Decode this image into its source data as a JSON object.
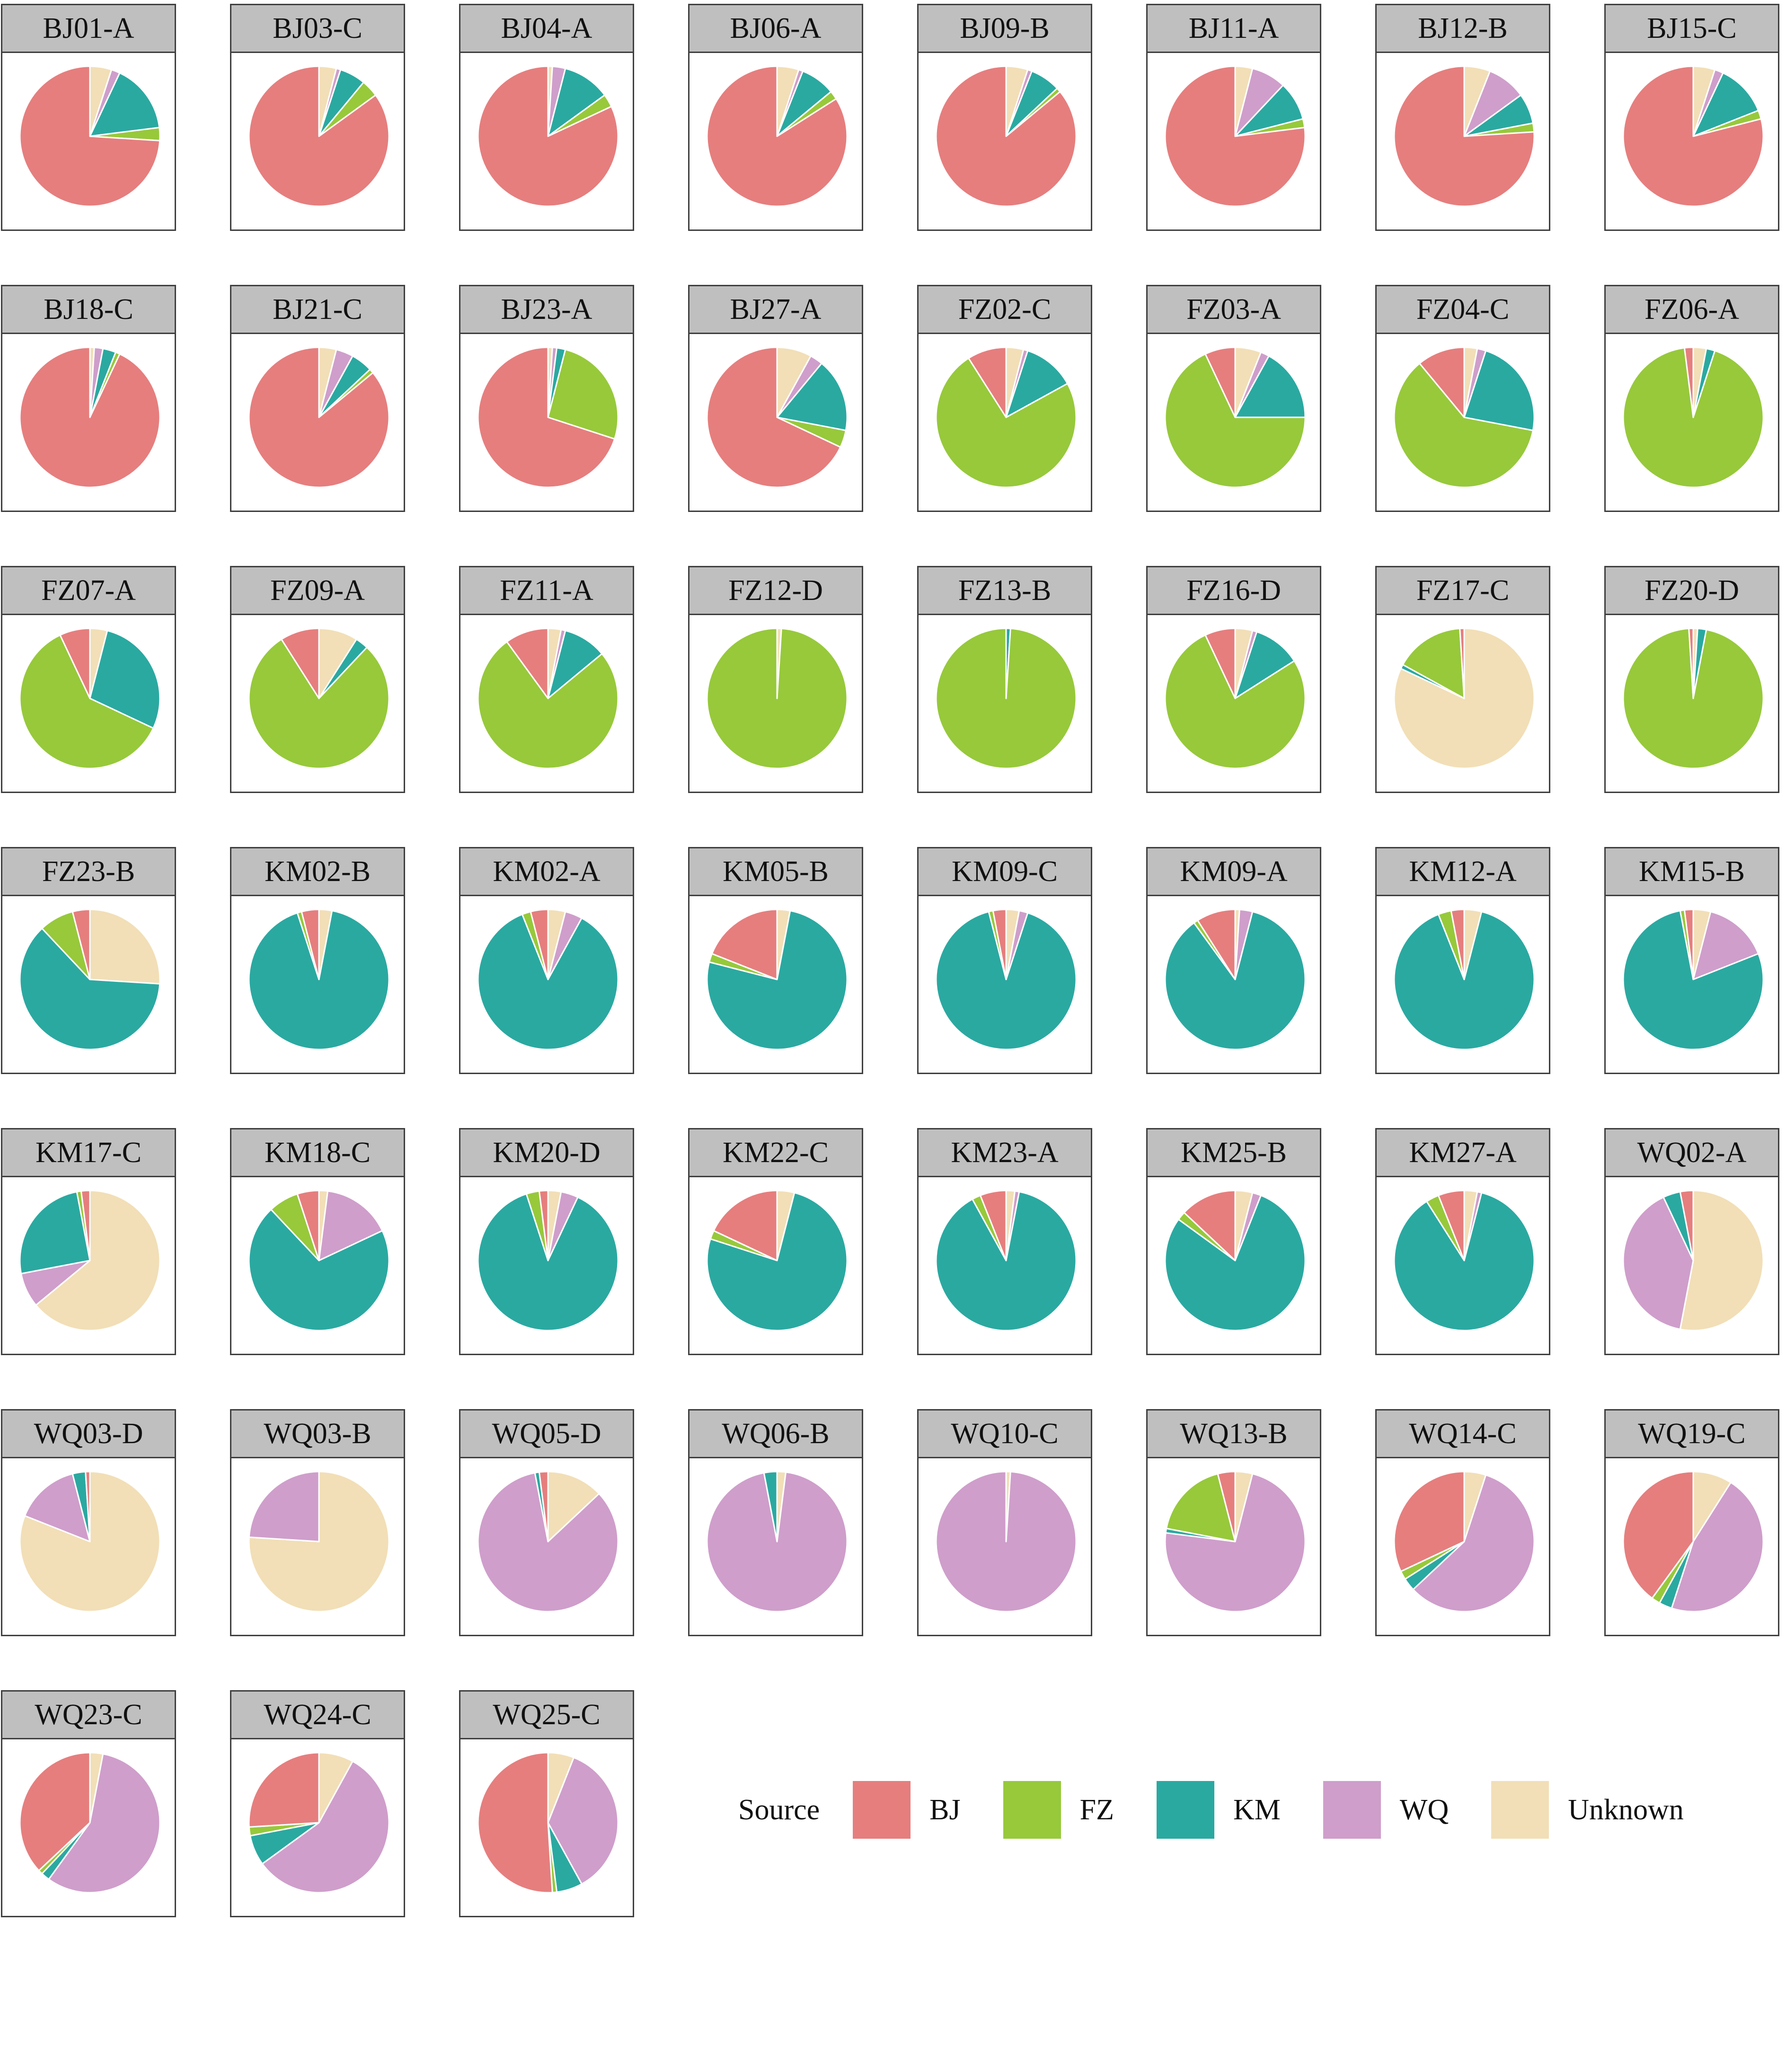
{
  "chart_data": {
    "type": "pie",
    "legend": {
      "title": "Source",
      "entries": [
        {
          "name": "BJ",
          "color": "#e67e7e"
        },
        {
          "name": "FZ",
          "color": "#97c93b"
        },
        {
          "name": "KM",
          "color": "#2aa9a1"
        },
        {
          "name": "WQ",
          "color": "#cf9ecb"
        },
        {
          "name": "Unknown",
          "color": "#f2dfb7"
        }
      ]
    },
    "slice_order_clockwise_from_top": [
      "Unknown",
      "WQ",
      "KM",
      "FZ",
      "BJ"
    ],
    "panels": [
      {
        "label": "BJ01-A",
        "values": {
          "Unknown": 5,
          "WQ": 2,
          "KM": 16,
          "FZ": 3,
          "BJ": 74
        }
      },
      {
        "label": "BJ03-C",
        "values": {
          "Unknown": 4,
          "WQ": 1,
          "KM": 6,
          "FZ": 4,
          "BJ": 85
        }
      },
      {
        "label": "BJ04-A",
        "values": {
          "Unknown": 1,
          "WQ": 3,
          "KM": 11,
          "FZ": 3,
          "BJ": 82
        }
      },
      {
        "label": "BJ06-A",
        "values": {
          "Unknown": 5,
          "WQ": 1,
          "KM": 8,
          "FZ": 2,
          "BJ": 84
        }
      },
      {
        "label": "BJ09-B",
        "values": {
          "Unknown": 5,
          "WQ": 1,
          "KM": 7,
          "FZ": 1,
          "BJ": 86
        }
      },
      {
        "label": "BJ11-A",
        "values": {
          "Unknown": 4,
          "WQ": 8,
          "KM": 9,
          "FZ": 2,
          "BJ": 77
        }
      },
      {
        "label": "BJ12-B",
        "values": {
          "Unknown": 6,
          "WQ": 9,
          "KM": 7,
          "FZ": 2,
          "BJ": 76
        }
      },
      {
        "label": "BJ15-C",
        "values": {
          "Unknown": 5,
          "WQ": 2,
          "KM": 12,
          "FZ": 2,
          "BJ": 79
        }
      },
      {
        "label": "BJ18-C",
        "values": {
          "Unknown": 1,
          "WQ": 2,
          "KM": 3,
          "FZ": 1,
          "BJ": 93
        }
      },
      {
        "label": "BJ21-C",
        "values": {
          "Unknown": 4,
          "WQ": 4,
          "KM": 5,
          "FZ": 1,
          "BJ": 86
        }
      },
      {
        "label": "BJ23-A",
        "values": {
          "Unknown": 1,
          "WQ": 1,
          "KM": 2,
          "FZ": 26,
          "BJ": 70
        }
      },
      {
        "label": "BJ27-A",
        "values": {
          "Unknown": 8,
          "WQ": 3,
          "KM": 17,
          "FZ": 4,
          "BJ": 68
        }
      },
      {
        "label": "FZ02-C",
        "values": {
          "Unknown": 4,
          "WQ": 1,
          "KM": 12,
          "FZ": 74,
          "BJ": 9
        }
      },
      {
        "label": "FZ03-A",
        "values": {
          "Unknown": 6,
          "WQ": 2,
          "KM": 17,
          "FZ": 68,
          "BJ": 7
        }
      },
      {
        "label": "FZ04-C",
        "values": {
          "Unknown": 3,
          "WQ": 2,
          "KM": 23,
          "FZ": 61,
          "BJ": 11
        }
      },
      {
        "label": "FZ06-A",
        "values": {
          "Unknown": 3,
          "WQ": 0,
          "KM": 2,
          "FZ": 93,
          "BJ": 2
        }
      },
      {
        "label": "FZ07-A",
        "values": {
          "Unknown": 4,
          "WQ": 0,
          "KM": 28,
          "FZ": 61,
          "BJ": 7
        }
      },
      {
        "label": "FZ09-A",
        "values": {
          "Unknown": 9,
          "WQ": 0,
          "KM": 3,
          "FZ": 79,
          "BJ": 9
        }
      },
      {
        "label": "FZ11-A",
        "values": {
          "Unknown": 3,
          "WQ": 1,
          "KM": 10,
          "FZ": 76,
          "BJ": 10
        }
      },
      {
        "label": "FZ12-D",
        "values": {
          "Unknown": 1,
          "WQ": 0,
          "KM": 0,
          "FZ": 99,
          "BJ": 0
        }
      },
      {
        "label": "FZ13-B",
        "values": {
          "Unknown": 0,
          "WQ": 0,
          "KM": 1,
          "FZ": 99,
          "BJ": 0
        }
      },
      {
        "label": "FZ16-D",
        "values": {
          "Unknown": 4,
          "WQ": 1,
          "KM": 11,
          "FZ": 77,
          "BJ": 7
        }
      },
      {
        "label": "FZ17-C",
        "values": {
          "Unknown": 82,
          "WQ": 0,
          "KM": 1,
          "FZ": 16,
          "BJ": 1
        }
      },
      {
        "label": "FZ20-D",
        "values": {
          "Unknown": 1,
          "WQ": 0,
          "KM": 2,
          "FZ": 96,
          "BJ": 1
        }
      },
      {
        "label": "FZ23-B",
        "values": {
          "Unknown": 26,
          "WQ": 0,
          "KM": 62,
          "FZ": 8,
          "BJ": 4
        }
      },
      {
        "label": "KM02-B",
        "values": {
          "Unknown": 3,
          "WQ": 0,
          "KM": 92,
          "FZ": 1,
          "BJ": 4
        }
      },
      {
        "label": "KM02-A",
        "values": {
          "Unknown": 4,
          "WQ": 4,
          "KM": 86,
          "FZ": 2,
          "BJ": 4
        }
      },
      {
        "label": "KM05-B",
        "values": {
          "Unknown": 3,
          "WQ": 0,
          "KM": 76,
          "FZ": 2,
          "BJ": 19
        }
      },
      {
        "label": "KM09-C",
        "values": {
          "Unknown": 3,
          "WQ": 2,
          "KM": 91,
          "FZ": 1,
          "BJ": 3
        }
      },
      {
        "label": "KM09-A",
        "values": {
          "Unknown": 1,
          "WQ": 3,
          "KM": 86,
          "FZ": 1,
          "BJ": 9
        }
      },
      {
        "label": "KM12-A",
        "values": {
          "Unknown": 4,
          "WQ": 0,
          "KM": 90,
          "FZ": 3,
          "BJ": 3
        }
      },
      {
        "label": "KM15-B",
        "values": {
          "Unknown": 4,
          "WQ": 15,
          "KM": 78,
          "FZ": 1,
          "BJ": 2
        }
      },
      {
        "label": "KM17-C",
        "values": {
          "Unknown": 64,
          "WQ": 8,
          "KM": 25,
          "FZ": 1,
          "BJ": 2
        }
      },
      {
        "label": "KM18-C",
        "values": {
          "Unknown": 2,
          "WQ": 16,
          "KM": 70,
          "FZ": 7,
          "BJ": 5
        }
      },
      {
        "label": "KM20-D",
        "values": {
          "Unknown": 3,
          "WQ": 4,
          "KM": 88,
          "FZ": 3,
          "BJ": 2
        }
      },
      {
        "label": "KM22-C",
        "values": {
          "Unknown": 4,
          "WQ": 0,
          "KM": 76,
          "FZ": 2,
          "BJ": 18
        }
      },
      {
        "label": "KM23-A",
        "values": {
          "Unknown": 2,
          "WQ": 1,
          "KM": 89,
          "FZ": 2,
          "BJ": 6
        }
      },
      {
        "label": "KM25-B",
        "values": {
          "Unknown": 4,
          "WQ": 2,
          "KM": 79,
          "FZ": 2,
          "BJ": 13
        }
      },
      {
        "label": "KM27-A",
        "values": {
          "Unknown": 3,
          "WQ": 1,
          "KM": 87,
          "FZ": 3,
          "BJ": 6
        }
      },
      {
        "label": "WQ02-A",
        "values": {
          "Unknown": 53,
          "WQ": 40,
          "KM": 4,
          "FZ": 0,
          "BJ": 3
        }
      },
      {
        "label": "WQ03-D",
        "values": {
          "Unknown": 81,
          "WQ": 15,
          "KM": 3,
          "FZ": 0,
          "BJ": 1
        }
      },
      {
        "label": "WQ03-B",
        "values": {
          "Unknown": 76,
          "WQ": 24,
          "KM": 0,
          "FZ": 0,
          "BJ": 0
        }
      },
      {
        "label": "WQ05-D",
        "values": {
          "Unknown": 13,
          "WQ": 84,
          "KM": 1,
          "FZ": 0,
          "BJ": 2
        }
      },
      {
        "label": "WQ06-B",
        "values": {
          "Unknown": 2,
          "WQ": 95,
          "KM": 3,
          "FZ": 0,
          "BJ": 0
        }
      },
      {
        "label": "WQ10-C",
        "values": {
          "Unknown": 1,
          "WQ": 99,
          "KM": 0,
          "FZ": 0,
          "BJ": 0
        }
      },
      {
        "label": "WQ13-B",
        "values": {
          "Unknown": 4,
          "WQ": 73,
          "KM": 1,
          "FZ": 18,
          "BJ": 4
        }
      },
      {
        "label": "WQ14-C",
        "values": {
          "Unknown": 5,
          "WQ": 58,
          "KM": 3,
          "FZ": 2,
          "BJ": 32
        }
      },
      {
        "label": "WQ19-C",
        "values": {
          "Unknown": 9,
          "WQ": 46,
          "KM": 3,
          "FZ": 2,
          "BJ": 40
        }
      },
      {
        "label": "WQ23-C",
        "values": {
          "Unknown": 3,
          "WQ": 57,
          "KM": 2,
          "FZ": 1,
          "BJ": 37
        }
      },
      {
        "label": "WQ24-C",
        "values": {
          "Unknown": 8,
          "WQ": 57,
          "KM": 7,
          "FZ": 2,
          "BJ": 26
        }
      },
      {
        "label": "WQ25-C",
        "values": {
          "Unknown": 6,
          "WQ": 36,
          "KM": 6,
          "FZ": 1,
          "BJ": 51
        }
      }
    ]
  }
}
